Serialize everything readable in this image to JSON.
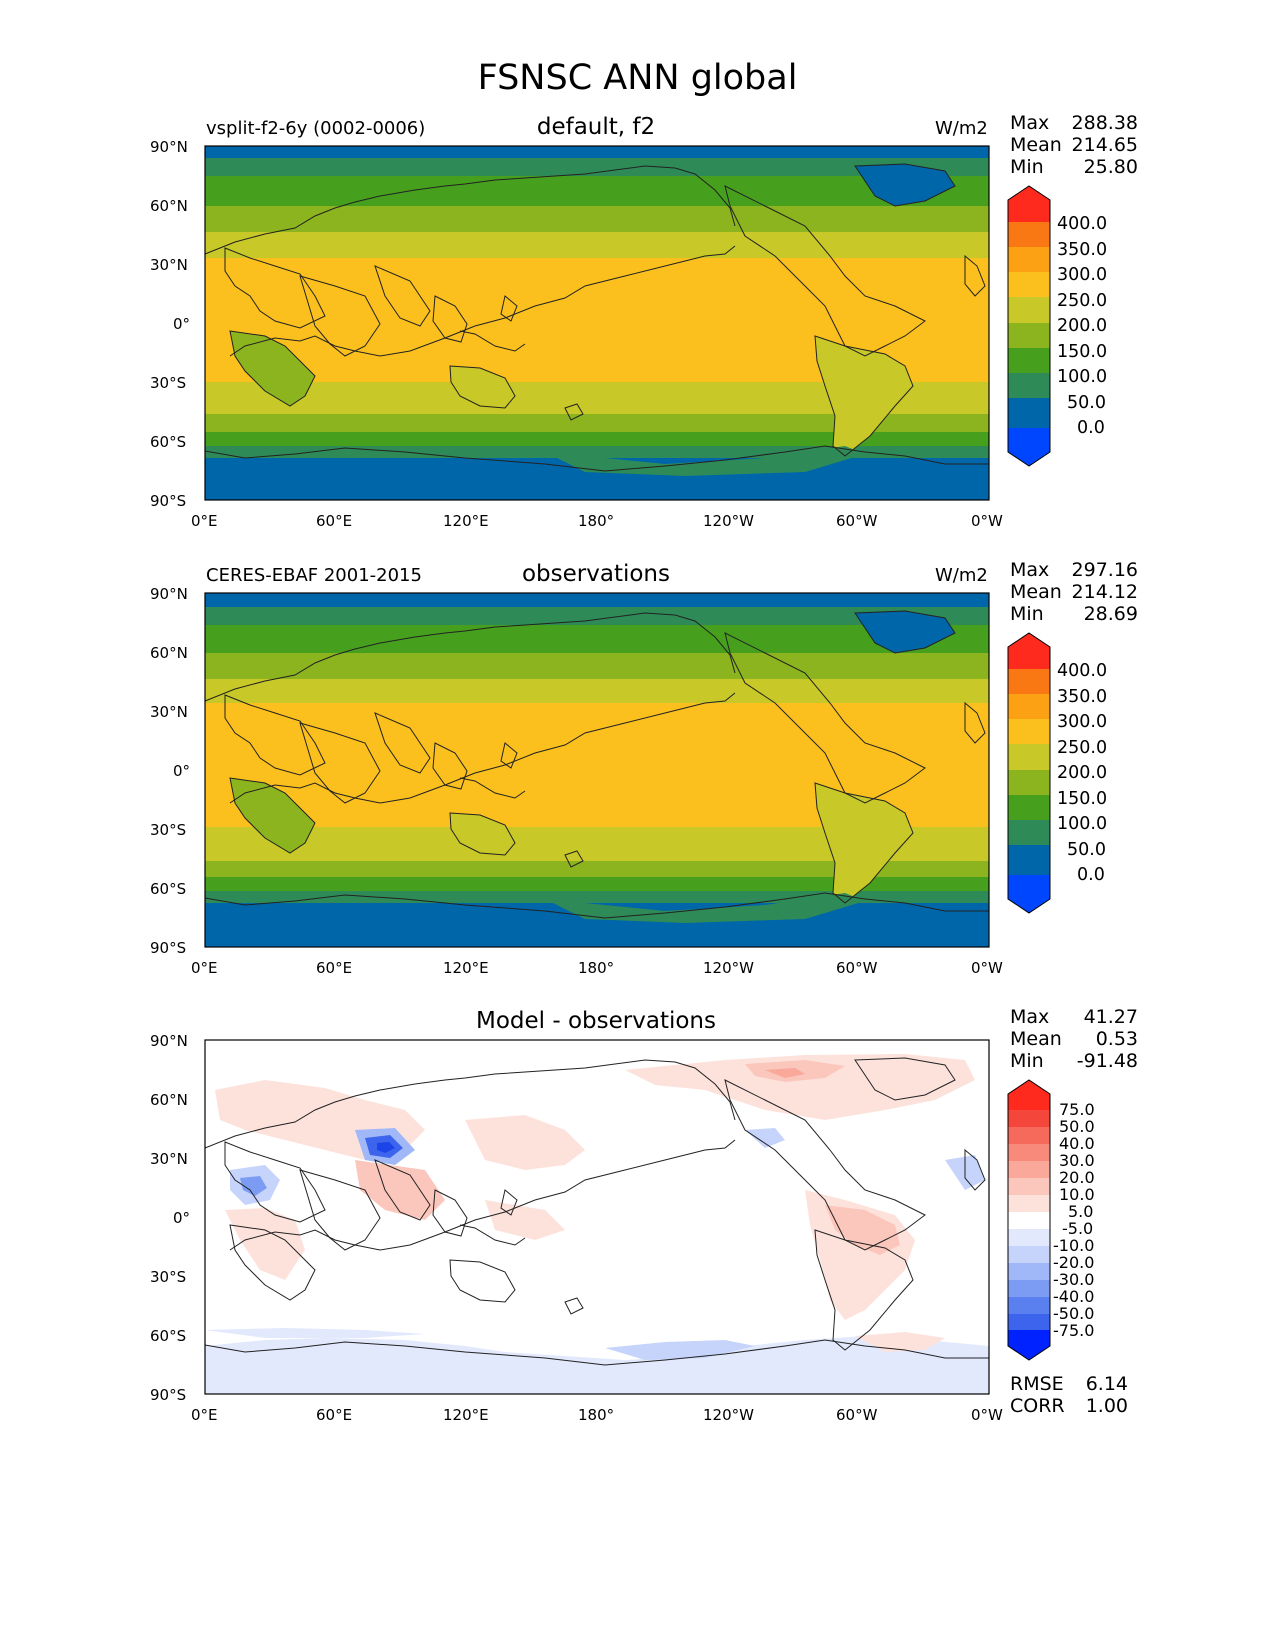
{
  "figure": {
    "title": "FSNSC ANN global"
  },
  "axes": {
    "lat_ticks": [
      "90°N",
      "60°N",
      "30°N",
      "0°",
      "30°S",
      "60°S",
      "90°S"
    ],
    "lon_ticks": [
      "0°E",
      "60°E",
      "120°E",
      "180°",
      "120°W",
      "60°W",
      "0°W"
    ]
  },
  "panels": [
    {
      "left_label": "vsplit-f2-6y (0002-0006)",
      "title": "default, f2",
      "units": "W/m2",
      "stats": {
        "max_label": "Max",
        "max": "288.38",
        "mean_label": "Mean",
        "mean": "214.65",
        "min_label": "Min",
        "min": "25.80"
      },
      "colorbar_labels": [
        "400.0",
        "350.0",
        "300.0",
        "250.0",
        "200.0",
        "150.0",
        "100.0",
        "50.0",
        "0.0"
      ]
    },
    {
      "left_label": "CERES-EBAF 2001-2015",
      "title": "observations",
      "units": "W/m2",
      "stats": {
        "max_label": "Max",
        "max": "297.16",
        "mean_label": "Mean",
        "mean": "214.12",
        "min_label": "Min",
        "min": "28.69"
      },
      "colorbar_labels": [
        "400.0",
        "350.0",
        "300.0",
        "250.0",
        "200.0",
        "150.0",
        "100.0",
        "50.0",
        "0.0"
      ]
    },
    {
      "left_label": "",
      "title": "Model - observations",
      "units": "",
      "stats": {
        "max_label": "Max",
        "max": "41.27",
        "mean_label": "Mean",
        "mean": "0.53",
        "min_label": "Min",
        "min": "-91.48"
      },
      "colorbar_labels": [
        "75.0",
        "50.0",
        "40.0",
        "30.0",
        "20.0",
        "10.0",
        "5.0",
        "-5.0",
        "-10.0",
        "-20.0",
        "-30.0",
        "-40.0",
        "-50.0",
        "-75.0"
      ],
      "metrics": {
        "rmse_label": "RMSE",
        "rmse": "6.14",
        "corr_label": "CORR",
        "corr": "1.00"
      }
    }
  ],
  "colors": {
    "abs_scale": [
      "#0046ff",
      "#0066aa",
      "#2e8b57",
      "#46a01e",
      "#8cb41e",
      "#c8c828",
      "#fbc01e",
      "#fca014",
      "#fa7814",
      "#ff2a1e"
    ],
    "diff_scale": [
      "#0022ff",
      "#1c44e8",
      "#3c64ec",
      "#5a80f0",
      "#7c9cf4",
      "#a0b8f8",
      "#c6d4fb",
      "#e2e9fd",
      "#ffffff",
      "#fde2dc",
      "#fbc6bc",
      "#f9a89a",
      "#f78a7a",
      "#f56a5a",
      "#f4463a",
      "#ff2a1e"
    ]
  }
}
